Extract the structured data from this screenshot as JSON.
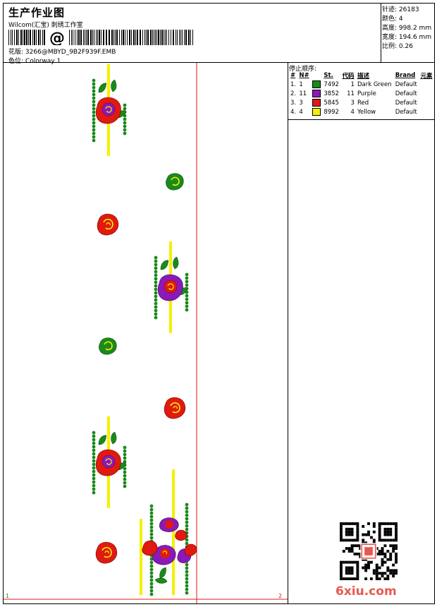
{
  "header": {
    "title": "生产作业图",
    "subtitle": "Wilcom(汇宝) 刺绣工作室",
    "barcode_char": "@",
    "design_label": "花版:",
    "design_file": "3266@MBYD_9B2F939F.EMB",
    "colorway_label": "色位:",
    "colorway": "Colorway 1"
  },
  "stats": [
    {
      "label": "针迹:",
      "value": "26183"
    },
    {
      "label": "颜色:",
      "value": "4"
    },
    {
      "label": "高度:",
      "value": "998.2 mm"
    },
    {
      "label": "宽度:",
      "value": "194.6 mm"
    },
    {
      "label": "比例:",
      "value": "0.26"
    }
  ],
  "stops": {
    "title": "停止顺序:",
    "headers": [
      "#",
      "N#",
      "St.",
      "代码",
      "描述",
      "Brand",
      "元素"
    ],
    "rows": [
      {
        "idx": "1.",
        "n": "1",
        "st": "7492",
        "code": "1",
        "desc": "Dark Green",
        "brand": "Default",
        "color": "#1a8a1a"
      },
      {
        "idx": "2.",
        "n": "11",
        "st": "3852",
        "code": "11",
        "desc": "Purple",
        "brand": "Default",
        "color": "#8a1ab8"
      },
      {
        "idx": "3.",
        "n": "3",
        "st": "5845",
        "code": "3",
        "desc": "Red",
        "brand": "Default",
        "color": "#e01a10"
      },
      {
        "idx": "4.",
        "n": "4",
        "st": "8992",
        "code": "4",
        "desc": "Yellow",
        "brand": "Default",
        "color": "#f5f000"
      }
    ]
  },
  "canvas": {
    "marker_start": "1",
    "marker_end": "2"
  },
  "watermark": "6xiu.com"
}
